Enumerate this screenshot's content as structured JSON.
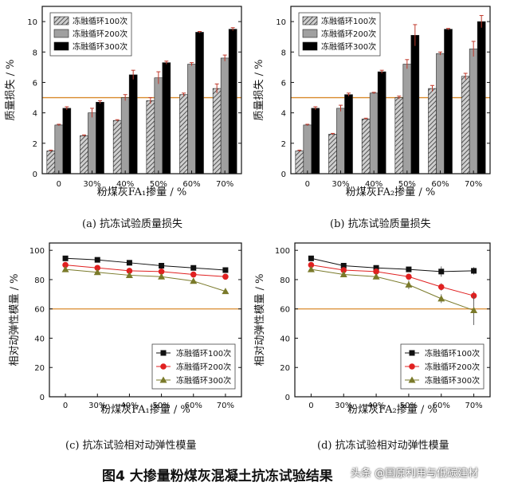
{
  "figure_title": "图4   大掺量粉煤灰混凝土抗冻试验结果",
  "watermark": "头条 @国原利用与低碳建材",
  "colors": {
    "threshold": "#d98a2b",
    "bar100": "#8c8c8c",
    "bar200": "#a0a0a0",
    "bar300": "#000000",
    "line100": "#111111",
    "line200": "#e02020",
    "line300": "#7a7a2a",
    "axis": "#111111"
  },
  "chart_data": [
    {
      "id": "a",
      "type": "bar",
      "caption": "(a) 抗冻试验质量损失",
      "title": "",
      "xlabel": "粉煤灰FA₁掺量 / %",
      "ylabel": "质量损失 / %",
      "categories": [
        "0",
        "30%",
        "40%",
        "50%",
        "60%",
        "70%"
      ],
      "ylim": [
        0,
        11
      ],
      "yticks": [
        0,
        2,
        4,
        6,
        8,
        10
      ],
      "threshold": 5,
      "legend_position": "top-left",
      "series": [
        {
          "name": "冻融循环100次",
          "pattern": "hatch",
          "values": [
            1.5,
            2.5,
            3.5,
            4.8,
            5.2,
            5.6
          ],
          "errors": [
            0.05,
            0.05,
            0.05,
            0.2,
            0.1,
            0.3
          ]
        },
        {
          "name": "冻融循环200次",
          "pattern": "gray",
          "values": [
            3.2,
            4.0,
            5.0,
            6.3,
            7.2,
            7.6
          ],
          "errors": [
            0.05,
            0.3,
            0.2,
            0.4,
            0.1,
            0.2
          ]
        },
        {
          "name": "冻融循环300次",
          "pattern": "black",
          "values": [
            4.3,
            4.7,
            6.5,
            7.3,
            9.3,
            9.5
          ],
          "errors": [
            0.1,
            0.1,
            0.3,
            0.1,
            0.05,
            0.1
          ]
        }
      ]
    },
    {
      "id": "b",
      "type": "bar",
      "caption": "(b) 抗冻试验质量损失",
      "title": "",
      "xlabel": "粉煤灰FA₂掺量 / %",
      "ylabel": "质量损失 / %",
      "categories": [
        "0",
        "30%",
        "40%",
        "50%",
        "60%",
        "70%"
      ],
      "ylim": [
        0,
        11
      ],
      "yticks": [
        0,
        2,
        4,
        6,
        8,
        10
      ],
      "threshold": 5,
      "legend_position": "top-left",
      "series": [
        {
          "name": "冻融循环100次",
          "pattern": "hatch",
          "values": [
            1.5,
            2.6,
            3.6,
            5.0,
            5.6,
            6.4
          ],
          "errors": [
            0.05,
            0.05,
            0.05,
            0.1,
            0.2,
            0.2
          ]
        },
        {
          "name": "冻融循环200次",
          "pattern": "gray",
          "values": [
            3.2,
            4.3,
            5.3,
            7.2,
            7.9,
            8.2
          ],
          "errors": [
            0.05,
            0.2,
            0.05,
            0.3,
            0.1,
            0.5
          ]
        },
        {
          "name": "冻融循环300次",
          "pattern": "black",
          "values": [
            4.3,
            5.2,
            6.7,
            9.1,
            9.5,
            10.0
          ],
          "errors": [
            0.1,
            0.1,
            0.1,
            0.7,
            0.05,
            0.4
          ]
        }
      ]
    },
    {
      "id": "c",
      "type": "line",
      "caption": "(c) 抗冻试验相对动弹性模量",
      "title": "",
      "xlabel": "粉煤灰FA₁掺量 / %",
      "ylabel": "相对动弹性模量 / %",
      "categories": [
        "0",
        "30%",
        "40%",
        "50%",
        "60%",
        "70%"
      ],
      "ylim": [
        0,
        105
      ],
      "yticks": [
        0,
        20,
        40,
        60,
        80,
        100
      ],
      "threshold": 60,
      "legend_position": "bottom-right",
      "series": [
        {
          "name": "冻融循环100次",
          "marker": "square",
          "values": [
            94.5,
            93.5,
            91.5,
            89.5,
            88.0,
            86.5
          ],
          "errors": [
            0.6,
            0.6,
            0.6,
            1.0,
            0.6,
            0.6
          ]
        },
        {
          "name": "冻融循环200次",
          "marker": "circle",
          "values": [
            90.0,
            88.0,
            86.0,
            85.5,
            83.5,
            82.0
          ],
          "errors": [
            0.6,
            0.6,
            0.6,
            0.6,
            0.6,
            0.6
          ]
        },
        {
          "name": "冻融循环300次",
          "marker": "triangle",
          "values": [
            87.0,
            85.0,
            83.0,
            82.0,
            79.0,
            72.0
          ],
          "errors": [
            0.6,
            0.6,
            0.6,
            0.6,
            0.6,
            1.0
          ]
        }
      ]
    },
    {
      "id": "d",
      "type": "line",
      "caption": "(d) 抗冻试验相对动弹性模量",
      "title": "",
      "xlabel": "粉煤灰FA₂掺量 / %",
      "ylabel": "相对动弹性模量 / %",
      "categories": [
        "0",
        "30%",
        "40%",
        "50%",
        "60%",
        "70%"
      ],
      "ylim": [
        0,
        105
      ],
      "yticks": [
        0,
        20,
        40,
        60,
        80,
        100
      ],
      "threshold": 60,
      "legend_position": "bottom-right",
      "series": [
        {
          "name": "冻融循环100次",
          "marker": "square",
          "values": [
            94.5,
            89.5,
            88.0,
            87.0,
            85.5,
            86.0
          ],
          "errors": [
            0.6,
            0.6,
            0.6,
            0.6,
            3.5,
            2.5
          ]
        },
        {
          "name": "冻融循环200次",
          "marker": "circle",
          "values": [
            90.0,
            86.5,
            85.5,
            82.0,
            75.0,
            69.0
          ],
          "errors": [
            0.6,
            0.6,
            0.6,
            1.5,
            2.5,
            3.0
          ]
        },
        {
          "name": "冻融循环300次",
          "marker": "triangle",
          "values": [
            87.0,
            83.5,
            82.0,
            76.5,
            67.0,
            59.0
          ],
          "errors": [
            0.6,
            0.6,
            0.6,
            3.0,
            3.0,
            10.0
          ]
        }
      ]
    }
  ]
}
